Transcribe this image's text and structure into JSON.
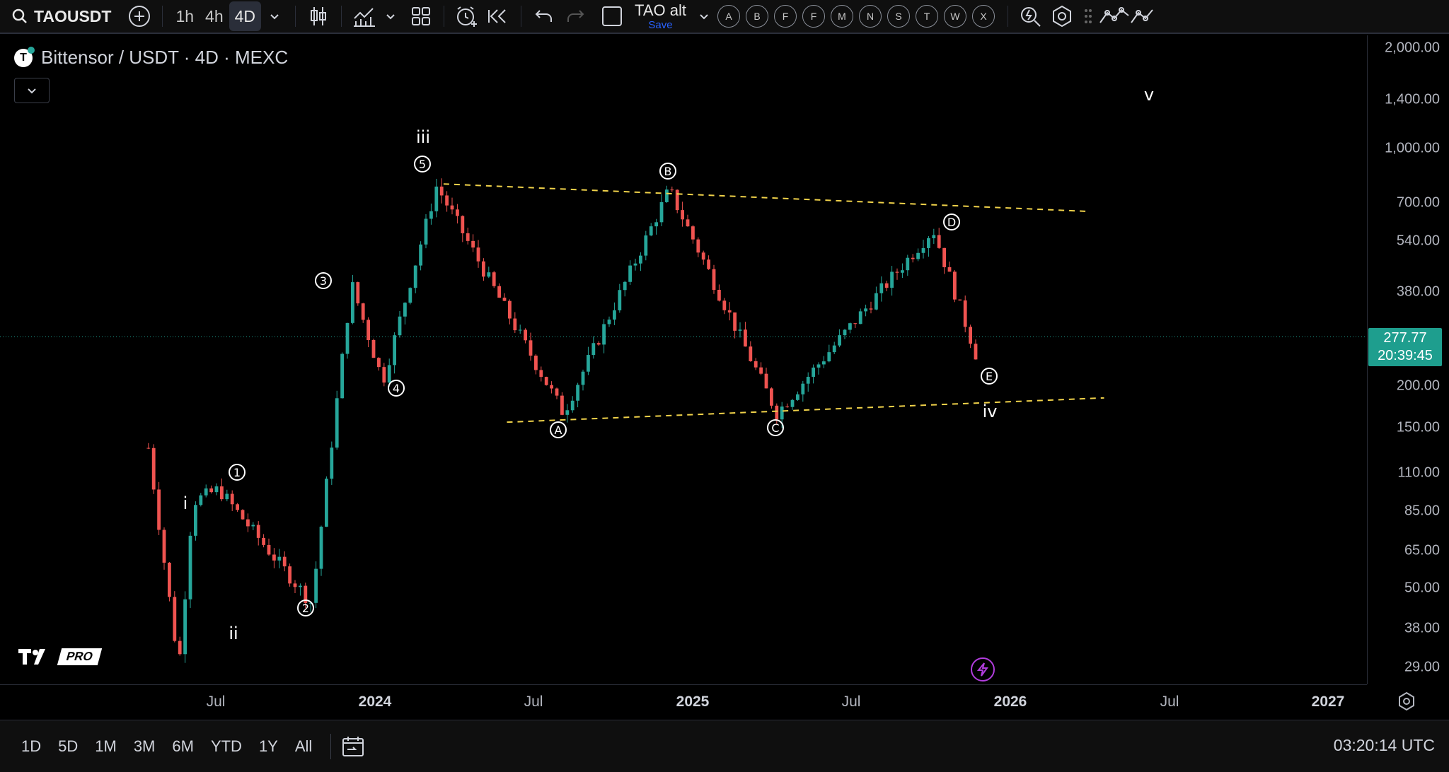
{
  "toolbar": {
    "symbol": "TAOUSDT",
    "intervals": [
      "1h",
      "4h",
      "4D"
    ],
    "active_interval": "4D",
    "layout_name": "TAO alt",
    "layout_save": "Save",
    "alert_letters": [
      "A",
      "B",
      "F",
      "F",
      "M",
      "N",
      "S",
      "T",
      "W",
      "X"
    ]
  },
  "legend": {
    "title": "Bittensor / USDT · 4D · MEXC"
  },
  "price_axis": {
    "ticks": [
      "2,000.00",
      "1,400.00",
      "1,000.00",
      "700.00",
      "540.00",
      "380.00",
      "200.00",
      "150.00",
      "110.00",
      "85.00",
      "65.00",
      "50.00",
      "38.00",
      "29.00"
    ],
    "current_price": "277.77",
    "countdown": "20:39:45"
  },
  "time_axis": {
    "ticks": [
      {
        "label": "Jul",
        "bold": false
      },
      {
        "label": "2024",
        "bold": true
      },
      {
        "label": "Jul",
        "bold": false
      },
      {
        "label": "2025",
        "bold": true
      },
      {
        "label": "Jul",
        "bold": false
      },
      {
        "label": "2026",
        "bold": true
      },
      {
        "label": "Jul",
        "bold": false
      },
      {
        "label": "2027",
        "bold": true
      }
    ]
  },
  "wave_labels": {
    "roman": [
      "i",
      "ii",
      "iii",
      "iv",
      "v"
    ],
    "circled": [
      "1",
      "2",
      "3",
      "4",
      "5",
      "A",
      "B",
      "C",
      "D",
      "E"
    ]
  },
  "bottom": {
    "ranges": [
      "1D",
      "5D",
      "1M",
      "3M",
      "6M",
      "YTD",
      "1Y",
      "All"
    ],
    "clock": "03:20:14 UTC"
  },
  "branding": {
    "pro": "PRO"
  },
  "colors": {
    "up": "#26a69a",
    "down": "#ef5350",
    "trendline": "#f0d24a",
    "accent": "#2962ff",
    "price_label": "#1e9e8e"
  },
  "chart_data": {
    "type": "candlestick",
    "title": "Bittensor / USDT · 4D · MEXC",
    "y_scale": "log",
    "ylim": [
      26,
      2300
    ],
    "x_range": [
      "2023-04",
      "2027-02"
    ],
    "current_price": 277.77,
    "key_swings": [
      {
        "label": "start",
        "date": "2023-04-15",
        "price": 130
      },
      {
        "label": "wave i",
        "date": "2023-06-05",
        "price": 90
      },
      {
        "label": "low",
        "date": "2023-05-20",
        "price": 29
      },
      {
        "label": "wave 1",
        "date": "2023-07-05",
        "price": 98
      },
      {
        "label": "wave 2",
        "date": "2023-10-20",
        "price": 45
      },
      {
        "label": "wave 3",
        "date": "2023-12-05",
        "price": 400
      },
      {
        "label": "wave 4",
        "date": "2024-01-10",
        "price": 205
      },
      {
        "label": "wave 5 / iii",
        "date": "2024-03-12",
        "price": 780
      },
      {
        "label": "A",
        "date": "2024-08-05",
        "price": 165
      },
      {
        "label": "B",
        "date": "2024-12-05",
        "price": 760
      },
      {
        "label": "C",
        "date": "2025-04-08",
        "price": 165
      },
      {
        "label": "D",
        "date": "2025-10-05",
        "price": 580
      },
      {
        "label": "E / iv",
        "date": "2025-11-25",
        "price": 240
      }
    ],
    "trendlines": [
      {
        "name": "upper",
        "from": {
          "date": "2024-03-20",
          "price": 790
        },
        "to": {
          "date": "2026-04-01",
          "price": 655
        }
      },
      {
        "name": "lower",
        "from": {
          "date": "2024-06-01",
          "price": 155
        },
        "to": {
          "date": "2026-04-20",
          "price": 183
        }
      }
    ]
  }
}
